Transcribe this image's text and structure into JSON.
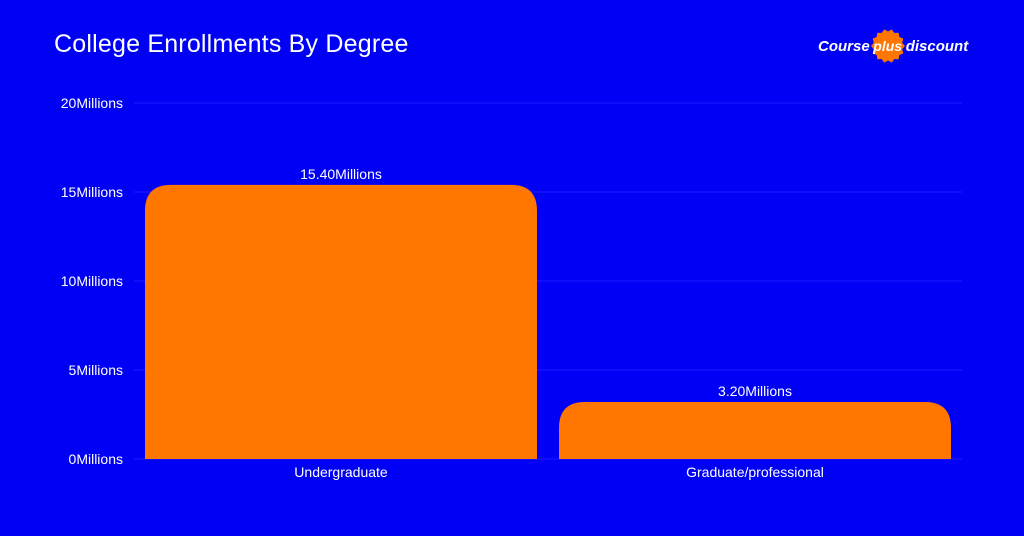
{
  "logo": {
    "left_text": "Course",
    "badge_text": "plus",
    "right_text": "discount",
    "badge_color": "#ff7700"
  },
  "colors": {
    "background": "#0000f5",
    "bar": "#ff7700",
    "grid": "#1c1cff"
  },
  "chart_data": {
    "type": "bar",
    "title": "College Enrollments By Degree",
    "xlabel": "",
    "ylabel": "",
    "categories": [
      "Undergraduate",
      "Graduate/professional"
    ],
    "values": [
      15.4,
      3.2
    ],
    "value_labels": [
      "15.40Millions",
      "3.20Millions"
    ],
    "ylim": [
      0,
      20
    ],
    "yticks": [
      0,
      5,
      10,
      15,
      20
    ],
    "ytick_labels": [
      "0Millions",
      "5Millions",
      "10Millions",
      "15Millions",
      "20Millions"
    ],
    "grid": true,
    "legend": "none"
  }
}
